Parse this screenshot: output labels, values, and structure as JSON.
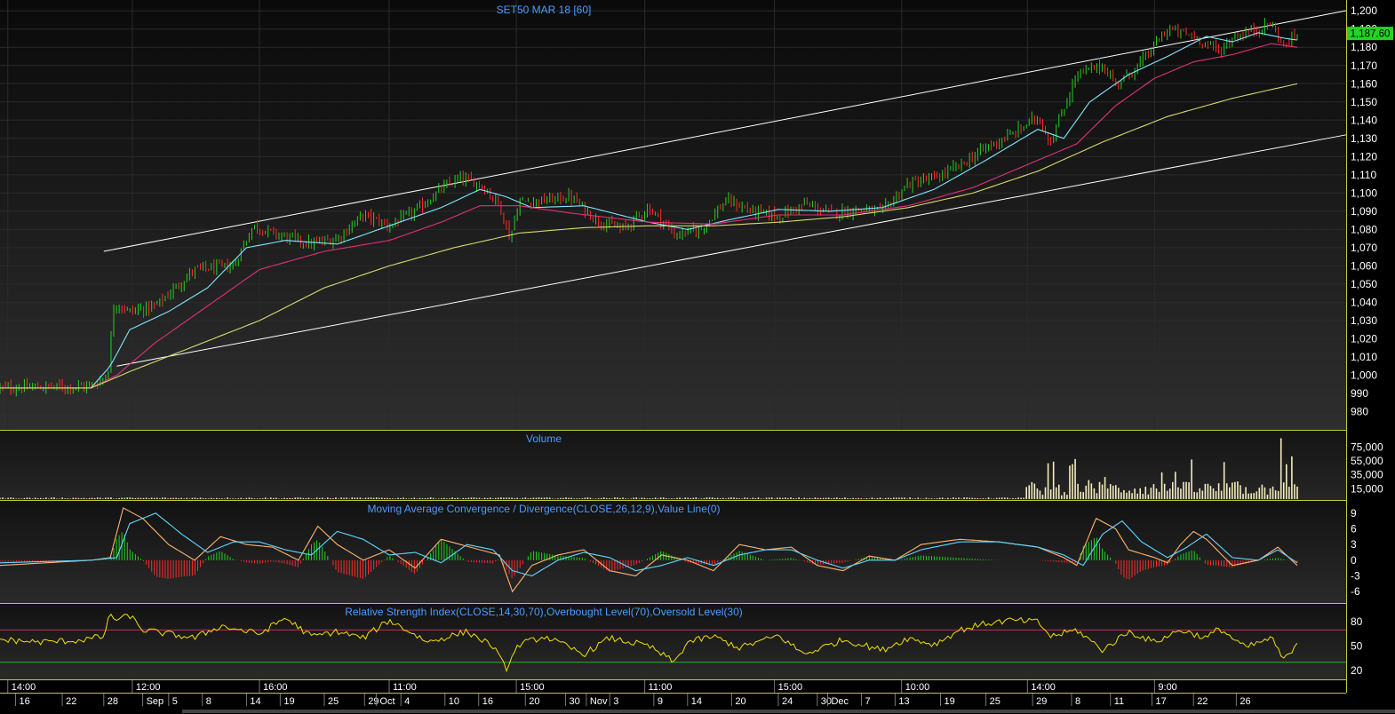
{
  "window": {
    "title": "SET50 MAR 18   [60]",
    "last_price_label": "1,187.60",
    "colors": {
      "background": "#000000",
      "panel_border": "#c8c832",
      "title_text": "#4a9cff",
      "axis_text": "#ffffff",
      "grid": "#2a2a2a",
      "up_candle": "#1fd21f",
      "down_candle": "#ff2a2a",
      "ma_fast": "#7fe6ff",
      "ma_mid": "#e0307a",
      "ma_slow": "#d8d870",
      "channel": "#ffffff",
      "volume_bar": "#f4ecc0",
      "macd_line": "#ffb36b",
      "signal_line": "#5fd6ff",
      "rsi_line": "#f0e000",
      "overbought_line": "#c03060",
      "oversold_line": "#30b030",
      "last_price_bg": "#24d424"
    }
  },
  "chart_data": [
    {
      "name": "price",
      "type": "line",
      "title": "SET50 MAR 18   [60]",
      "ylim": [
        972,
        1204
      ],
      "y_ticks": [
        "980",
        "990",
        "1,000",
        "1,010",
        "1,020",
        "1,030",
        "1,040",
        "1,050",
        "1,060",
        "1,070",
        "1,080",
        "1,090",
        "1,100",
        "1,110",
        "1,120",
        "1,130",
        "1,140",
        "1,150",
        "1,160",
        "1,170",
        "1,180",
        "1,190",
        "1,200"
      ],
      "y_tick_values": [
        980,
        990,
        1000,
        1010,
        1020,
        1030,
        1040,
        1050,
        1060,
        1070,
        1080,
        1090,
        1100,
        1110,
        1120,
        1130,
        1140,
        1150,
        1160,
        1170,
        1180,
        1190,
        1200
      ],
      "last_value": 1187.6,
      "close_approx": {
        "t": [
          0,
          0.07,
          0.083,
          0.088,
          0.1,
          0.12,
          0.15,
          0.18,
          0.195,
          0.21,
          0.24,
          0.26,
          0.28,
          0.3,
          0.32,
          0.34,
          0.355,
          0.37,
          0.385,
          0.393,
          0.4,
          0.42,
          0.44,
          0.46,
          0.48,
          0.5,
          0.51,
          0.52,
          0.54,
          0.56,
          0.58,
          0.6,
          0.62,
          0.64,
          0.66,
          0.68,
          0.7,
          0.72,
          0.74,
          0.76,
          0.78,
          0.8,
          0.81,
          0.83,
          0.85,
          0.86,
          0.87,
          0.88,
          0.9,
          0.92,
          0.94,
          0.95,
          0.96,
          0.97,
          0.98,
          0.99,
          1.0
        ],
        "y": [
          993,
          994,
          1000,
          1040,
          1035,
          1038,
          1058,
          1060,
          1082,
          1078,
          1072,
          1075,
          1088,
          1082,
          1090,
          1102,
          1108,
          1105,
          1094,
          1075,
          1095,
          1096,
          1098,
          1085,
          1080,
          1092,
          1085,
          1077,
          1080,
          1096,
          1090,
          1087,
          1094,
          1089,
          1091,
          1090,
          1105,
          1108,
          1115,
          1125,
          1132,
          1142,
          1128,
          1165,
          1170,
          1160,
          1165,
          1172,
          1190,
          1186,
          1178,
          1185,
          1188,
          1190,
          1193,
          1180,
          1187.6
        ]
      },
      "moving_averages": [
        {
          "role": "fast",
          "t": [
            0,
            0.07,
            0.085,
            0.1,
            0.13,
            0.16,
            0.19,
            0.22,
            0.26,
            0.3,
            0.34,
            0.37,
            0.39,
            0.41,
            0.45,
            0.5,
            0.53,
            0.56,
            0.6,
            0.64,
            0.68,
            0.72,
            0.76,
            0.8,
            0.82,
            0.84,
            0.87,
            0.9,
            0.93,
            0.95,
            0.97,
            0.99,
            1.0
          ],
          "y": [
            993,
            993,
            1005,
            1025,
            1035,
            1048,
            1070,
            1074,
            1072,
            1082,
            1092,
            1102,
            1098,
            1092,
            1093,
            1084,
            1080,
            1085,
            1091,
            1090,
            1092,
            1102,
            1118,
            1135,
            1130,
            1150,
            1165,
            1175,
            1186,
            1183,
            1188,
            1185,
            1184
          ]
        },
        {
          "role": "mid",
          "t": [
            0,
            0.07,
            0.09,
            0.12,
            0.16,
            0.2,
            0.25,
            0.3,
            0.34,
            0.37,
            0.4,
            0.44,
            0.5,
            0.55,
            0.6,
            0.65,
            0.7,
            0.75,
            0.8,
            0.83,
            0.86,
            0.89,
            0.92,
            0.95,
            0.98,
            1.0
          ],
          "y": [
            993,
            993,
            1000,
            1018,
            1038,
            1058,
            1068,
            1074,
            1084,
            1093,
            1093,
            1089,
            1084,
            1083,
            1088,
            1088,
            1093,
            1103,
            1118,
            1127,
            1148,
            1163,
            1172,
            1176,
            1182,
            1180
          ]
        },
        {
          "role": "slow",
          "t": [
            0,
            0.07,
            0.1,
            0.15,
            0.2,
            0.25,
            0.3,
            0.35,
            0.4,
            0.45,
            0.5,
            0.55,
            0.6,
            0.65,
            0.7,
            0.75,
            0.8,
            0.85,
            0.9,
            0.95,
            1.0
          ],
          "y": [
            993,
            993,
            1002,
            1016,
            1030,
            1048,
            1060,
            1070,
            1078,
            1081,
            1082,
            1082,
            1084,
            1087,
            1092,
            1100,
            1112,
            1128,
            1142,
            1152,
            1160
          ]
        }
      ],
      "channel_lines": [
        {
          "t": [
            0.08,
            1.0
          ],
          "y": [
            1068,
            1195
          ]
        },
        {
          "t": [
            0.09,
            1.0
          ],
          "y": [
            1005,
            1127
          ]
        }
      ]
    },
    {
      "name": "volume",
      "type": "bar",
      "title": "Volume",
      "ylim": [
        0,
        95000
      ],
      "y_ticks": [
        "15,000",
        "35,000",
        "55,000",
        "75,000"
      ],
      "y_tick_values": [
        15000,
        35000,
        55000,
        75000
      ],
      "regime": {
        "t_start_high": 0.79,
        "low_level": 1500,
        "mid_level": 18000,
        "high_level": 30000,
        "peak_t": 0.987,
        "peak_value": 88000
      }
    },
    {
      "name": "macd",
      "type": "line",
      "title": "Moving Average Convergence / Divergence(CLOSE,26,12,9),Value Line(0)",
      "ylim": [
        -8,
        11
      ],
      "y_ticks": [
        "-6",
        "-3",
        "0",
        "3",
        "6",
        "9"
      ],
      "y_tick_values": [
        -6,
        -3,
        0,
        3,
        6,
        9
      ],
      "macd": {
        "t": [
          0,
          0.07,
          0.085,
          0.095,
          0.11,
          0.13,
          0.15,
          0.17,
          0.19,
          0.21,
          0.23,
          0.245,
          0.26,
          0.28,
          0.3,
          0.32,
          0.34,
          0.355,
          0.37,
          0.385,
          0.395,
          0.41,
          0.43,
          0.45,
          0.47,
          0.49,
          0.51,
          0.53,
          0.55,
          0.57,
          0.59,
          0.61,
          0.63,
          0.65,
          0.67,
          0.69,
          0.71,
          0.74,
          0.77,
          0.8,
          0.82,
          0.83,
          0.845,
          0.86,
          0.87,
          0.89,
          0.9,
          0.91,
          0.92,
          0.93,
          0.95,
          0.97,
          0.985,
          1.0
        ],
        "y": [
          -1,
          0,
          0.5,
          10,
          8,
          3,
          0,
          4.5,
          3,
          2.5,
          0,
          6.5,
          3,
          0,
          2,
          -1.5,
          4,
          3,
          2,
          1,
          -6,
          -1,
          1,
          2,
          -2,
          -3,
          1,
          0,
          -2,
          3,
          2,
          2.5,
          -1,
          -2,
          0.8,
          0,
          3,
          4,
          3.5,
          2.5,
          0.5,
          -1,
          8,
          6,
          2,
          0.5,
          -0.5,
          3,
          5.5,
          4,
          -1,
          0,
          2.5,
          -1
        ]
      },
      "signal": {
        "t": [
          0,
          0.07,
          0.09,
          0.1,
          0.12,
          0.14,
          0.16,
          0.18,
          0.2,
          0.22,
          0.24,
          0.26,
          0.28,
          0.3,
          0.32,
          0.34,
          0.36,
          0.38,
          0.395,
          0.41,
          0.43,
          0.45,
          0.47,
          0.49,
          0.51,
          0.53,
          0.55,
          0.57,
          0.59,
          0.61,
          0.63,
          0.65,
          0.67,
          0.69,
          0.71,
          0.74,
          0.77,
          0.8,
          0.82,
          0.835,
          0.85,
          0.865,
          0.88,
          0.9,
          0.915,
          0.93,
          0.95,
          0.97,
          0.985,
          1.0
        ],
        "y": [
          -0.5,
          0,
          0.5,
          7,
          9,
          5,
          1.5,
          3.5,
          3.5,
          2,
          1,
          5.5,
          4,
          1,
          1.5,
          -0.5,
          3,
          2,
          -2,
          -3,
          0,
          1.5,
          0.5,
          -2,
          -1,
          0.5,
          -1,
          1,
          2,
          2,
          0,
          -1.5,
          0,
          0,
          2,
          3.5,
          3.5,
          2.5,
          1,
          -1,
          5,
          7.5,
          3.5,
          0.5,
          2.5,
          5,
          0.5,
          0,
          2,
          -0.5
        ]
      }
    },
    {
      "name": "rsi",
      "type": "line",
      "title": "Relative Strength Index(CLOSE,14,30,70),Overbought Level(70),Oversold Level(30)",
      "ylim": [
        10,
        100
      ],
      "y_ticks": [
        "20",
        "50",
        "80"
      ],
      "y_tick_values": [
        20,
        50,
        80
      ],
      "overbought": 70,
      "oversold": 30,
      "rsi": {
        "t": [
          0,
          0.03,
          0.06,
          0.08,
          0.085,
          0.09,
          0.1,
          0.11,
          0.13,
          0.15,
          0.17,
          0.2,
          0.22,
          0.24,
          0.26,
          0.28,
          0.3,
          0.33,
          0.36,
          0.38,
          0.39,
          0.4,
          0.42,
          0.45,
          0.47,
          0.5,
          0.52,
          0.53,
          0.55,
          0.57,
          0.6,
          0.62,
          0.65,
          0.68,
          0.7,
          0.72,
          0.74,
          0.76,
          0.78,
          0.8,
          0.81,
          0.83,
          0.85,
          0.87,
          0.89,
          0.91,
          0.93,
          0.94,
          0.96,
          0.98,
          0.99,
          1.0
        ],
        "y": [
          58,
          55,
          57,
          62,
          90,
          82,
          88,
          70,
          65,
          60,
          75,
          65,
          85,
          62,
          68,
          60,
          82,
          55,
          68,
          50,
          22,
          52,
          62,
          40,
          60,
          50,
          30,
          55,
          62,
          48,
          63,
          40,
          58,
          45,
          60,
          52,
          70,
          78,
          82,
          80,
          62,
          70,
          45,
          68,
          55,
          70,
          60,
          72,
          48,
          60,
          32,
          55
        ]
      }
    },
    {
      "name": "time_axis",
      "type": "table",
      "upper_labels": [
        {
          "t": 0.006,
          "label": "14:00"
        },
        {
          "t": 0.102,
          "label": "12:00"
        },
        {
          "t": 0.2,
          "label": "16:00"
        },
        {
          "t": 0.3,
          "label": "11:00"
        },
        {
          "t": 0.398,
          "label": "15:00"
        },
        {
          "t": 0.497,
          "label": "11:00"
        },
        {
          "t": 0.597,
          "label": "15:00"
        },
        {
          "t": 0.695,
          "label": "10:00"
        },
        {
          "t": 0.792,
          "label": "14:00"
        },
        {
          "t": 0.89,
          "label": "9:00"
        }
      ],
      "lower_labels": [
        {
          "t": 0.012,
          "label": "16"
        },
        {
          "t": 0.048,
          "label": "22"
        },
        {
          "t": 0.08,
          "label": "28"
        },
        {
          "t": 0.11,
          "label": "Sep"
        },
        {
          "t": 0.13,
          "label": "5"
        },
        {
          "t": 0.156,
          "label": "8"
        },
        {
          "t": 0.19,
          "label": "14"
        },
        {
          "t": 0.216,
          "label": "19"
        },
        {
          "t": 0.25,
          "label": "25"
        },
        {
          "t": 0.281,
          "label": "29"
        },
        {
          "t": 0.29,
          "label": "Oct"
        },
        {
          "t": 0.309,
          "label": "4"
        },
        {
          "t": 0.343,
          "label": "10"
        },
        {
          "t": 0.369,
          "label": "16"
        },
        {
          "t": 0.405,
          "label": "20"
        },
        {
          "t": 0.436,
          "label": "30"
        },
        {
          "t": 0.452,
          "label": "Nov"
        },
        {
          "t": 0.47,
          "label": "3"
        },
        {
          "t": 0.504,
          "label": "9"
        },
        {
          "t": 0.53,
          "label": "14"
        },
        {
          "t": 0.564,
          "label": "20"
        },
        {
          "t": 0.6,
          "label": "24"
        },
        {
          "t": 0.63,
          "label": "30"
        },
        {
          "t": 0.638,
          "label": "Dec"
        },
        {
          "t": 0.664,
          "label": "7"
        },
        {
          "t": 0.69,
          "label": "13"
        },
        {
          "t": 0.725,
          "label": "19"
        },
        {
          "t": 0.76,
          "label": "25"
        },
        {
          "t": 0.796,
          "label": "29"
        },
        {
          "t": 0.826,
          "label": "8"
        },
        {
          "t": 0.856,
          "label": "11"
        },
        {
          "t": 0.888,
          "label": "17"
        },
        {
          "t": 0.92,
          "label": "22"
        },
        {
          "t": 0.953,
          "label": "26"
        }
      ]
    }
  ]
}
